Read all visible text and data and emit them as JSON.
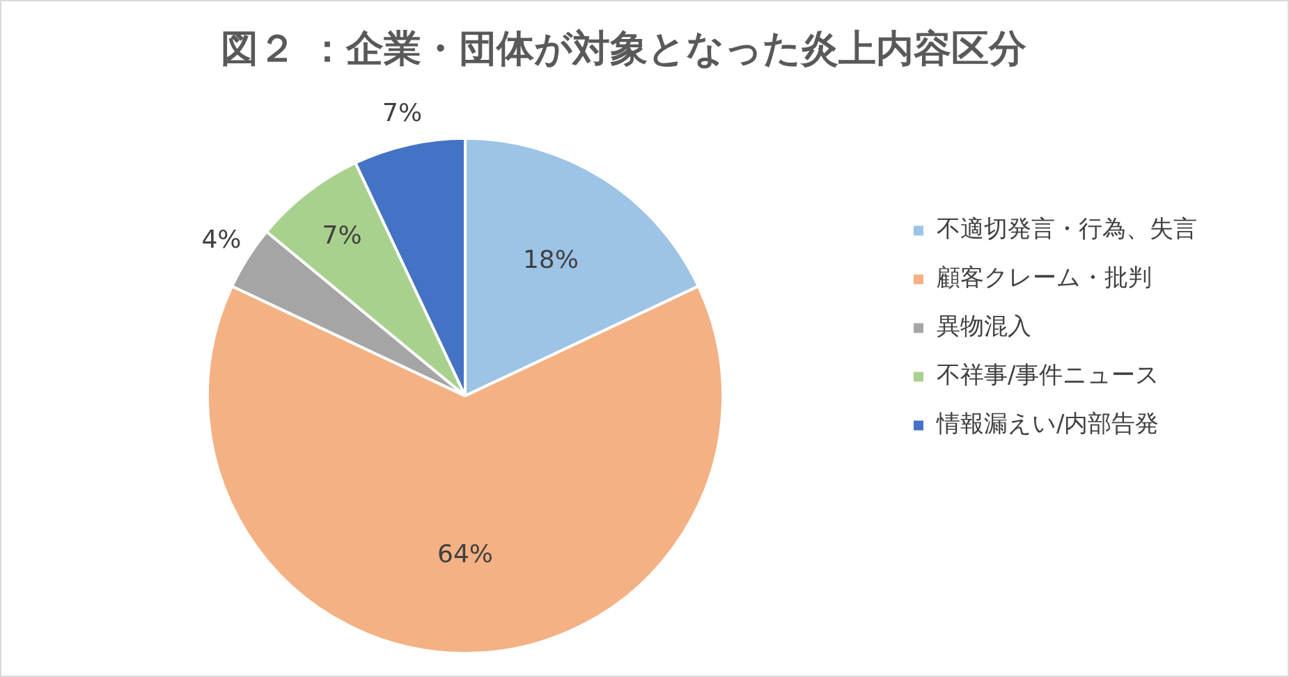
{
  "chart_data": {
    "type": "pie",
    "title": "図２ ：企業・団体が対象となった炎上内容区分",
    "categories": [
      "不適切発言・行為、失言",
      "顧客クレーム・批判",
      "異物混入",
      "不祥事/事件ニュース",
      "情報漏えい/内部告発"
    ],
    "values": [
      18,
      64,
      4,
      7,
      7
    ],
    "colors": [
      "#9dc3e6",
      "#f4b183",
      "#a5a5a5",
      "#a9d18e",
      "#4472c4"
    ],
    "value_labels": [
      "18%",
      "64%",
      "4%",
      "7%",
      "7%"
    ],
    "legend": "right"
  }
}
